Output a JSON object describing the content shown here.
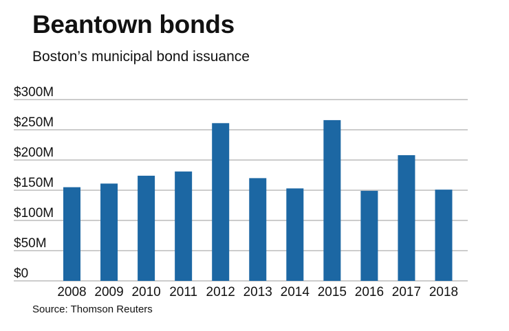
{
  "header": {
    "title": "Beantown bonds",
    "subtitle": "Boston’s municipal bond issuance"
  },
  "footer": {
    "source": "Source: Thomson Reuters"
  },
  "colors": {
    "bar": "#1c67a3",
    "grid": "#9a9a9a",
    "text": "#111111"
  },
  "chart_data": {
    "type": "bar",
    "categories": [
      "2008",
      "2009",
      "2010",
      "2011",
      "2012",
      "2013",
      "2014",
      "2015",
      "2016",
      "2017",
      "2018"
    ],
    "values": [
      155,
      161,
      174,
      181,
      261,
      170,
      153,
      266,
      149,
      208,
      151
    ],
    "ylim": [
      0,
      300
    ],
    "yticks": [
      0,
      50,
      100,
      150,
      200,
      250,
      300
    ],
    "ytick_labels": [
      "$0",
      "$50M",
      "$100M",
      "$150M",
      "$200M",
      "$250M",
      "$300M"
    ],
    "grid": true,
    "legend": "none"
  }
}
